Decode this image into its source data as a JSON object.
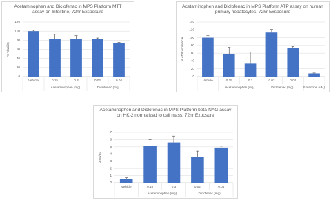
{
  "chart_data": [
    {
      "type": "bar",
      "title": "Acetaminophen and Diclofenac in MPS Platform MTT assay on Intestine, 72hr Exsposure",
      "y_label": "% Viability",
      "categories": [
        "Vehicle",
        "0.15",
        "0.3",
        "0.02",
        "0.04"
      ],
      "category_groups": [
        null,
        "Acetaminophen (mg)",
        "Acetaminophen (mg)",
        "Diclofenac (mg)",
        "Diclofenac (mg)"
      ],
      "values": [
        100,
        83,
        83,
        83,
        74
      ],
      "errors": [
        2,
        10,
        7,
        2,
        1
      ],
      "color": "#4472c4",
      "ylim": [
        0,
        120
      ],
      "yticks": [
        0,
        20,
        40,
        60,
        80,
        100,
        120
      ],
      "grid": true
    },
    {
      "type": "bar",
      "title": "Acetaminophen and Diclofenac in MPS Platform ATP assay on human primary hepatocytes, 72hr Exsposure",
      "y_label": "% ATP vs Vehicle",
      "categories": [
        "Vehicle",
        "0.15",
        "0.3",
        "0.02",
        "0.04",
        "1"
      ],
      "category_groups": [
        null,
        "Acetaminophen (mg)",
        "Acetaminophen (mg)",
        "Diclofenac (mg)",
        "Diclofenac (mg)",
        "Rotenone (uM)"
      ],
      "values": [
        100,
        58,
        33,
        113,
        73,
        8
      ],
      "errors": [
        5,
        17,
        30,
        8,
        4,
        1
      ],
      "color": "#4472c4",
      "ylim": [
        0,
        140
      ],
      "yticks": [
        0,
        20,
        40,
        60,
        80,
        100,
        120,
        140
      ],
      "grid": true
    },
    {
      "type": "bar",
      "title": "Acetaminophen and Diclofenac in MPS Platform beta-NAG assay on HK-2 normalized to cell mass, 72hr Exposure",
      "y_label": "Units/uL",
      "categories": [
        "Vehicle",
        "0.15",
        "0.3",
        "0.02",
        "0.04"
      ],
      "category_groups": [
        null,
        "Acetaminophen (mg)",
        "Acetaminophen (mg)",
        "Diclofenac (mg)",
        "Diclofenac (mg)"
      ],
      "values": [
        0.5,
        5.1,
        5.6,
        3.6,
        4.9
      ],
      "errors": [
        0.2,
        0.9,
        0.9,
        0.8,
        0.2
      ],
      "color": "#4472c4",
      "ylim": [
        0,
        7
      ],
      "yticks": [
        0,
        1,
        2,
        3,
        4,
        5,
        6,
        7
      ],
      "grid": true
    }
  ]
}
